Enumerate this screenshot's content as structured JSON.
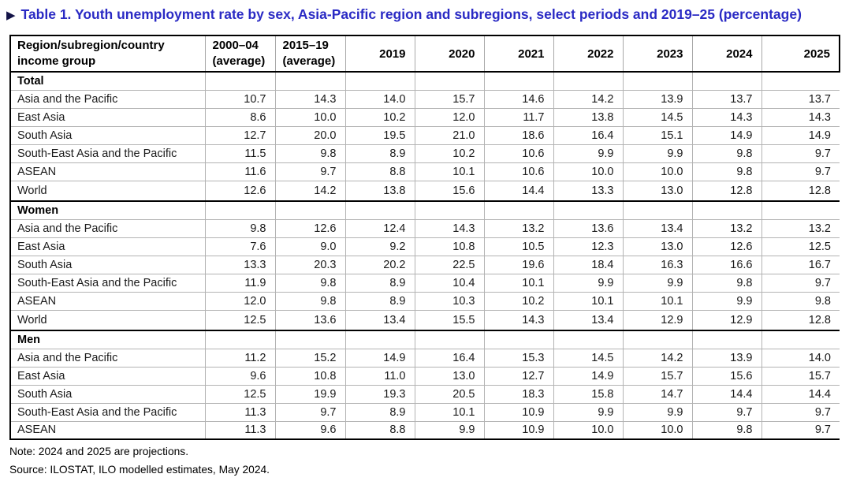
{
  "title": {
    "marker": "▶",
    "text": "Table 1. Youth unemployment rate by sex, Asia-Pacific region and subregions, select periods and 2019–25 (percentage)"
  },
  "table": {
    "header": {
      "region_col": [
        "Region/subregion/country",
        "income group"
      ],
      "avg_cols": [
        [
          "2000–04",
          "(average)"
        ],
        [
          "2015–19",
          "(average)"
        ]
      ],
      "year_cols": [
        "2019",
        "2020",
        "2021",
        "2022",
        "2023",
        "2024",
        "2025"
      ]
    },
    "sections": [
      {
        "label": "Total",
        "rows": [
          {
            "region": "Asia and the Pacific",
            "values": [
              "10.7",
              "14.3",
              "14.0",
              "15.7",
              "14.6",
              "14.2",
              "13.9",
              "13.7",
              "13.7"
            ]
          },
          {
            "region": "East Asia",
            "values": [
              "8.6",
              "10.0",
              "10.2",
              "12.0",
              "11.7",
              "13.8",
              "14.5",
              "14.3",
              "14.3"
            ]
          },
          {
            "region": "South Asia",
            "values": [
              "12.7",
              "20.0",
              "19.5",
              "21.0",
              "18.6",
              "16.4",
              "15.1",
              "14.9",
              "14.9"
            ]
          },
          {
            "region": "South-East Asia and the Pacific",
            "values": [
              "11.5",
              "9.8",
              "8.9",
              "10.2",
              "10.6",
              "9.9",
              "9.9",
              "9.8",
              "9.7"
            ]
          },
          {
            "region": "ASEAN",
            "values": [
              "11.6",
              "9.7",
              "8.8",
              "10.1",
              "10.6",
              "10.0",
              "10.0",
              "9.8",
              "9.7"
            ]
          },
          {
            "region": "World",
            "values": [
              "12.6",
              "14.2",
              "13.8",
              "15.6",
              "14.4",
              "13.3",
              "13.0",
              "12.8",
              "12.8"
            ]
          }
        ]
      },
      {
        "label": "Women",
        "rows": [
          {
            "region": "Asia and the Pacific",
            "values": [
              "9.8",
              "12.6",
              "12.4",
              "14.3",
              "13.2",
              "13.6",
              "13.4",
              "13.2",
              "13.2"
            ]
          },
          {
            "region": "East Asia",
            "values": [
              "7.6",
              "9.0",
              "9.2",
              "10.8",
              "10.5",
              "12.3",
              "13.0",
              "12.6",
              "12.5"
            ]
          },
          {
            "region": "South Asia",
            "values": [
              "13.3",
              "20.3",
              "20.2",
              "22.5",
              "19.6",
              "18.4",
              "16.3",
              "16.6",
              "16.7"
            ]
          },
          {
            "region": "South-East Asia and the Pacific",
            "values": [
              "11.9",
              "9.8",
              "8.9",
              "10.4",
              "10.1",
              "9.9",
              "9.9",
              "9.8",
              "9.7"
            ]
          },
          {
            "region": "ASEAN",
            "values": [
              "12.0",
              "9.8",
              "8.9",
              "10.3",
              "10.2",
              "10.1",
              "10.1",
              "9.9",
              "9.8"
            ]
          },
          {
            "region": "World",
            "values": [
              "12.5",
              "13.6",
              "13.4",
              "15.5",
              "14.3",
              "13.4",
              "12.9",
              "12.9",
              "12.8"
            ]
          }
        ]
      },
      {
        "label": "Men",
        "rows": [
          {
            "region": "Asia and the Pacific",
            "values": [
              "11.2",
              "15.2",
              "14.9",
              "16.4",
              "15.3",
              "14.5",
              "14.2",
              "13.9",
              "14.0"
            ]
          },
          {
            "region": "East Asia",
            "values": [
              "9.6",
              "10.8",
              "11.0",
              "13.0",
              "12.7",
              "14.9",
              "15.7",
              "15.6",
              "15.7"
            ]
          },
          {
            "region": "South Asia",
            "values": [
              "12.5",
              "19.9",
              "19.3",
              "20.5",
              "18.3",
              "15.8",
              "14.7",
              "14.4",
              "14.4"
            ]
          },
          {
            "region": "South-East Asia and the Pacific",
            "values": [
              "11.3",
              "9.7",
              "8.9",
              "10.1",
              "10.9",
              "9.9",
              "9.9",
              "9.7",
              "9.7"
            ]
          },
          {
            "region": "ASEAN",
            "values": [
              "11.3",
              "9.6",
              "8.8",
              "9.9",
              "10.9",
              "10.0",
              "10.0",
              "9.8",
              "9.7"
            ]
          }
        ]
      }
    ]
  },
  "note": "Note: 2024 and 2025 are projections.",
  "source": "Source: ILOSTAT, ILO modelled estimates, May 2024.",
  "colors": {
    "title_blue": "#2a2ac4",
    "marker_dark": "#131347",
    "border_black": "#000000",
    "border_gray": "#b3b3b3"
  }
}
